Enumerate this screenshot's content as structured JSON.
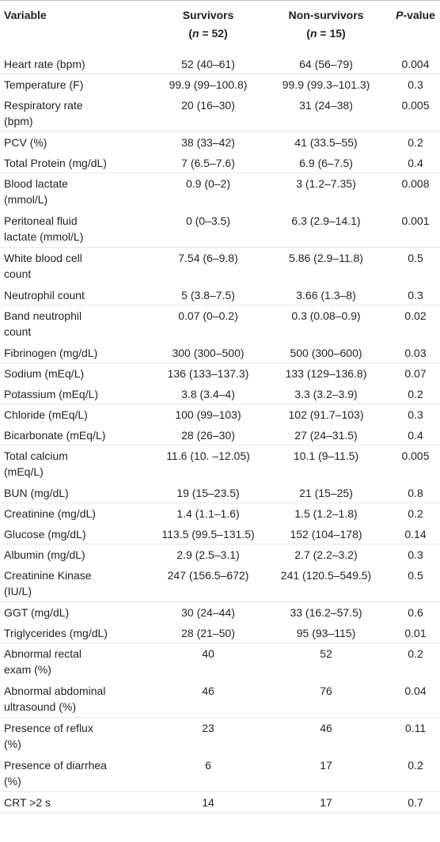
{
  "header": {
    "variable": "Variable",
    "survivors": "Survivors",
    "survivors_n_label": "n",
    "survivors_n_value": "= 52",
    "non_survivors": "Non-survivors",
    "non_survivors_n_label": "n",
    "non_survivors_n_value": "= 15",
    "p_italic": "P",
    "p_rest": "-value"
  },
  "rows": [
    {
      "variable": [
        "Heart rate (bpm)"
      ],
      "survivors": "52 (40–61)",
      "non_survivors": "64 (56–79)",
      "p": "0.004"
    },
    {
      "variable": [
        "Temperature (F)"
      ],
      "survivors": "99.9 (99–100.8)",
      "non_survivors": "99.9 (99.3–101.3)",
      "p": "0.3"
    },
    {
      "variable": [
        "Respiratory rate",
        "(bpm)"
      ],
      "survivors": "20 (16–30)",
      "non_survivors": "31 (24–38)",
      "p": "0.005"
    },
    {
      "variable": [
        "PCV (%)"
      ],
      "survivors": "38 (33–42)",
      "non_survivors": "41 (33.5–55)",
      "p": "0.2"
    },
    {
      "variable": [
        "Total Protein (mg/dL)"
      ],
      "survivors": "7 (6.5–7.6)",
      "non_survivors": "6.9 (6–7.5)",
      "p": "0.4"
    },
    {
      "variable": [
        "Blood lactate",
        "(mmol/L)"
      ],
      "survivors": "0.9 (0–2)",
      "non_survivors": "3 (1.2–7.35)",
      "p": "0.008"
    },
    {
      "variable": [
        "Peritoneal fluid",
        "lactate (mmol/L)"
      ],
      "survivors": "0 (0–3.5)",
      "non_survivors": "6.3 (2.9–14.1)",
      "p": "0.001"
    },
    {
      "variable": [
        "White blood cell",
        "count"
      ],
      "survivors": "7.54 (6–9.8)",
      "non_survivors": "5.86 (2.9–11.8)",
      "p": "0.5"
    },
    {
      "variable": [
        "Neutrophil count"
      ],
      "survivors": "5 (3.8–7.5)",
      "non_survivors": "3.66 (1.3–8)",
      "p": "0.3"
    },
    {
      "variable": [
        "Band neutrophil",
        "count"
      ],
      "survivors": "0.07 (0–0.2)",
      "non_survivors": "0.3 (0.08–0.9)",
      "p": "0.02"
    },
    {
      "variable": [
        "Fibrinogen (mg/dL)"
      ],
      "survivors": "300 (300–500)",
      "non_survivors": "500 (300–600)",
      "p": "0.03"
    },
    {
      "variable": [
        "Sodium (mEq/L)"
      ],
      "survivors": "136 (133–137.3)",
      "non_survivors": "133 (129–136.8)",
      "p": "0.07"
    },
    {
      "variable": [
        "Potassium (mEq/L)"
      ],
      "survivors": "3.8 (3.4–4)",
      "non_survivors": "3.3 (3.2–3.9)",
      "p": "0.2"
    },
    {
      "variable": [
        "Chloride (mEq/L)"
      ],
      "survivors": "100 (99–103)",
      "non_survivors": "102 (91.7–103)",
      "p": "0.3"
    },
    {
      "variable": [
        "Bicarbonate (mEq/L)"
      ],
      "survivors": "28 (26–30)",
      "non_survivors": "27 (24–31.5)",
      "p": "0.4"
    },
    {
      "variable": [
        "Total calcium",
        "(mEq/L)"
      ],
      "survivors": "11.6 (10. –12.05)",
      "non_survivors": "10.1 (9–11.5)",
      "p": "0.005"
    },
    {
      "variable": [
        "BUN (mg/dL)"
      ],
      "survivors": "19 (15–23.5)",
      "non_survivors": "21 (15–25)",
      "p": "0.8"
    },
    {
      "variable": [
        "Creatinine (mg/dL)"
      ],
      "survivors": "1.4 (1.1–1.6)",
      "non_survivors": "1.5 (1.2–1.8)",
      "p": "0.2"
    },
    {
      "variable": [
        "Glucose (mg/dL)"
      ],
      "survivors": "113.5 (99.5–131.5)",
      "non_survivors": "152 (104–178)",
      "p": "0.14"
    },
    {
      "variable": [
        "Albumin (mg/dL)"
      ],
      "survivors": "2.9 (2.5–3.1)",
      "non_survivors": "2.7 (2.2–3.2)",
      "p": "0.3"
    },
    {
      "variable": [
        "Creatinine Kinase",
        "(IU/L)"
      ],
      "survivors": "247 (156.5–672)",
      "non_survivors": "241 (120.5–549.5)",
      "p": "0.5"
    },
    {
      "variable": [
        "GGT (mg/dL)"
      ],
      "survivors": "30 (24–44)",
      "non_survivors": "33 (16.2–57.5)",
      "p": "0.6"
    },
    {
      "variable": [
        "Triglycerides (mg/dL)"
      ],
      "survivors": "28 (21–50)",
      "non_survivors": "95 (93–115)",
      "p": "0.01"
    },
    {
      "variable": [
        "Abnormal rectal",
        "exam (%)"
      ],
      "survivors": "40",
      "non_survivors": "52",
      "p": "0.2"
    },
    {
      "variable": [
        "Abnormal abdominal",
        "ultrasound (%)"
      ],
      "survivors": "46",
      "non_survivors": "76",
      "p": "0.04"
    },
    {
      "variable": [
        "Presence of reflux",
        "(%)"
      ],
      "survivors": "23",
      "non_survivors": "46",
      "p": "0.11"
    },
    {
      "variable": [
        "Presence of diarrhea",
        "(%)"
      ],
      "survivors": "6",
      "non_survivors": "17",
      "p": "0.2"
    },
    {
      "variable": [
        "CRT >2 s"
      ],
      "survivors": "14",
      "non_survivors": "17",
      "p": "0.7"
    }
  ]
}
